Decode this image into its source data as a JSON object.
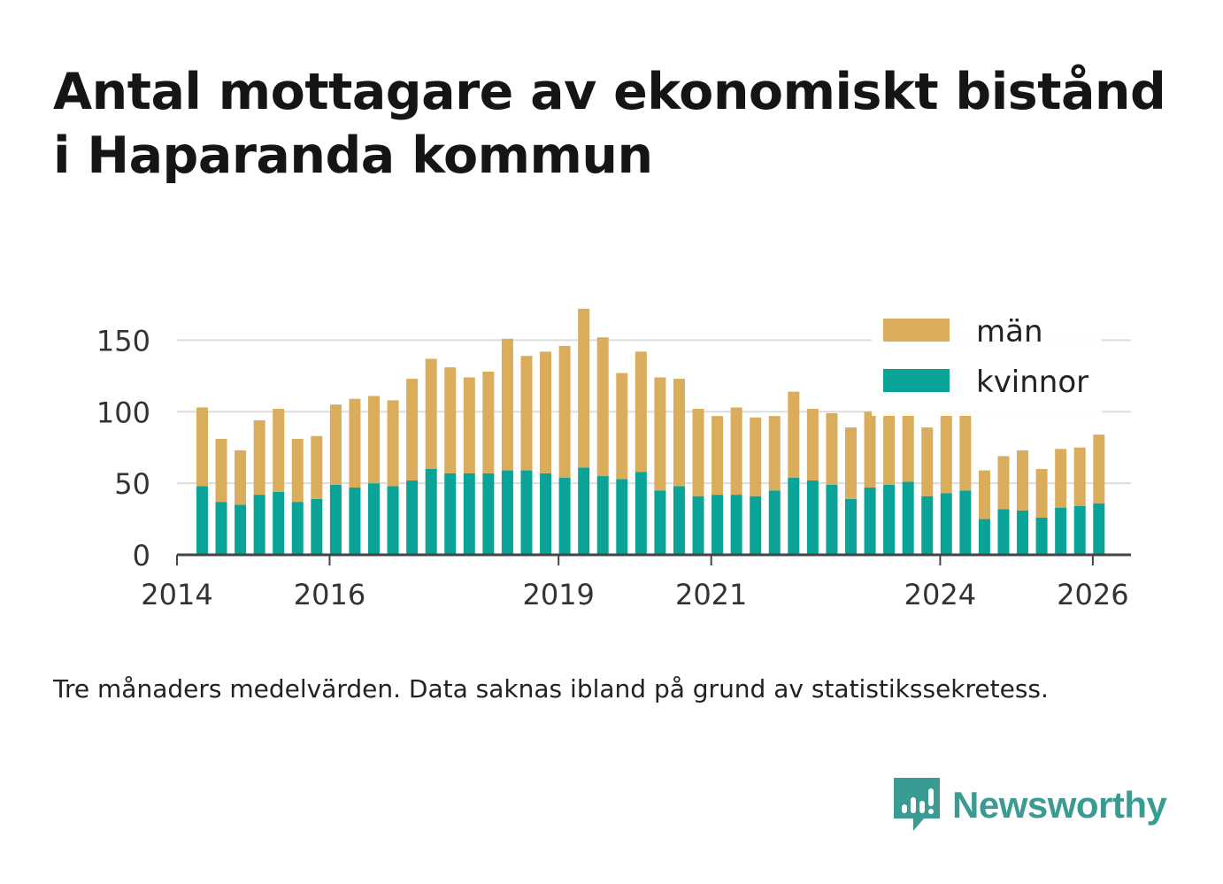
{
  "title_line1": "Antal mottagare av ekonomiskt bistånd",
  "title_line2": "i Haparanda kommun",
  "caption": "Tre månaders medelvärden. Data saknas ibland på grund av statistikssekretess.",
  "brand": {
    "name": "Newsworthy",
    "icon": "newsworthy-logo-icon",
    "color": "#3a9b92"
  },
  "colors": {
    "man": "#d9ad5c",
    "kvinnor": "#0aa397",
    "grid": "#dddddd",
    "axis": "#444444"
  },
  "chart_data": {
    "type": "bar",
    "stacked": true,
    "title": "Antal mottagare av ekonomiskt bistånd i Haparanda kommun",
    "xlabel": "",
    "ylabel": "",
    "ylim": [
      0,
      175
    ],
    "yticks": [
      0,
      50,
      100,
      150
    ],
    "xlim": [
      2014.0,
      2026.5
    ],
    "xticks": [
      2014,
      2016,
      2019,
      2021,
      2024,
      2026
    ],
    "grid": true,
    "legend_position": "top-right",
    "x": [
      2014.33,
      2014.58,
      2014.83,
      2015.08,
      2015.33,
      2015.58,
      2015.83,
      2016.08,
      2016.33,
      2016.58,
      2016.83,
      2017.08,
      2017.33,
      2017.58,
      2017.83,
      2018.08,
      2018.33,
      2018.58,
      2018.83,
      2019.08,
      2019.33,
      2019.58,
      2019.83,
      2020.08,
      2020.33,
      2020.58,
      2020.83,
      2021.08,
      2021.33,
      2021.58,
      2021.83,
      2022.08,
      2022.33,
      2022.58,
      2022.83,
      2023.08,
      2023.33,
      2023.58,
      2023.83,
      2024.08,
      2024.33,
      2024.58,
      2024.83,
      2025.08,
      2025.33,
      2025.58,
      2025.83,
      2026.08
    ],
    "series": [
      {
        "name": "kvinnor",
        "values": [
          48,
          37,
          35,
          42,
          44,
          37,
          39,
          49,
          47,
          50,
          48,
          52,
          60,
          57,
          57,
          57,
          59,
          59,
          57,
          54,
          61,
          55,
          53,
          58,
          45,
          48,
          41,
          42,
          42,
          41,
          45,
          54,
          52,
          49,
          39,
          47,
          49,
          51,
          41,
          43,
          45,
          25,
          32,
          31,
          26,
          33,
          34,
          36
        ]
      },
      {
        "name": "män",
        "values": [
          55,
          44,
          38,
          52,
          58,
          44,
          44,
          56,
          62,
          61,
          60,
          71,
          77,
          74,
          67,
          71,
          92,
          80,
          85,
          92,
          111,
          97,
          74,
          84,
          79,
          75,
          61,
          55,
          61,
          55,
          52,
          60,
          50,
          50,
          50,
          53,
          51,
          49,
          48,
          57,
          55,
          34,
          37,
          42,
          34,
          41,
          41,
          48
        ]
      }
    ],
    "legend": [
      "män",
      "kvinnor"
    ]
  }
}
